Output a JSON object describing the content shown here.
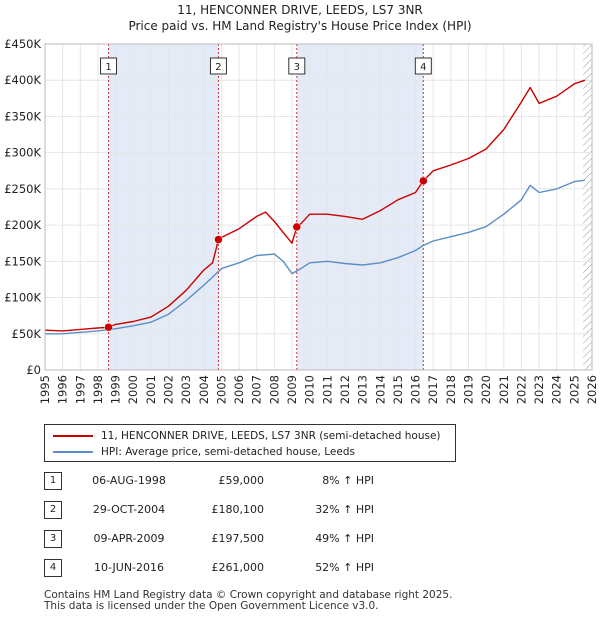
{
  "chart_data": {
    "type": "line",
    "title": "11, HENCONNER DRIVE, LEEDS, LS7 3NR",
    "subtitle": "Price paid vs. HM Land Registry's House Price Index (HPI)",
    "xlabel": "",
    "ylabel": "",
    "xlim": [
      1995,
      2026
    ],
    "ylim": [
      0,
      450000
    ],
    "x_ticks": [
      "1995",
      "1996",
      "1997",
      "1998",
      "1999",
      "2000",
      "2001",
      "2002",
      "2003",
      "2004",
      "2005",
      "2006",
      "2007",
      "2008",
      "2009",
      "2010",
      "2011",
      "2012",
      "2013",
      "2014",
      "2015",
      "2016",
      "2017",
      "2018",
      "2019",
      "2020",
      "2021",
      "2022",
      "2023",
      "2024",
      "2025",
      "2026"
    ],
    "y_ticks": [
      {
        "value": 0,
        "label": "£0"
      },
      {
        "value": 50000,
        "label": "£50K"
      },
      {
        "value": 100000,
        "label": "£100K"
      },
      {
        "value": 150000,
        "label": "£150K"
      },
      {
        "value": 200000,
        "label": "£200K"
      },
      {
        "value": 250000,
        "label": "£250K"
      },
      {
        "value": 300000,
        "label": "£300K"
      },
      {
        "value": 350000,
        "label": "£350K"
      },
      {
        "value": 400000,
        "label": "£400K"
      },
      {
        "value": 450000,
        "label": "£450K"
      }
    ],
    "grid": true,
    "series": [
      {
        "name": "11, HENCONNER DRIVE, LEEDS, LS7 3NR (semi-detached house)",
        "color": "#cc0000",
        "x": [
          1995,
          1996,
          1997,
          1998,
          1998.6,
          1999,
          2000,
          2001,
          2002,
          2003,
          2004,
          2004.5,
          2004.83,
          2005,
          2006,
          2007,
          2007.5,
          2008,
          2008.5,
          2009,
          2009.27,
          2009.5,
          2010,
          2011,
          2012,
          2013,
          2014,
          2015,
          2016,
          2016.44,
          2017,
          2018,
          2019,
          2020,
          2021,
          2022,
          2022.5,
          2023,
          2024,
          2025,
          2025.6
        ],
        "values": [
          55000,
          54000,
          56000,
          58000,
          59000,
          63000,
          67000,
          73000,
          88000,
          110000,
          138000,
          148000,
          180100,
          183000,
          195000,
          212000,
          218000,
          205000,
          190000,
          175000,
          197500,
          202000,
          215000,
          215000,
          212000,
          208000,
          220000,
          235000,
          245000,
          261000,
          275000,
          283000,
          292000,
          305000,
          332000,
          370000,
          390000,
          368000,
          378000,
          395000,
          400000
        ]
      },
      {
        "name": "HPI: Average price, semi-detached house, Leeds",
        "color": "#5b8dc8",
        "x": [
          1995,
          1996,
          1997,
          1998,
          1999,
          2000,
          2001,
          2002,
          2003,
          2004,
          2004.83,
          2005,
          2006,
          2007,
          2008,
          2008.5,
          2009,
          2009.5,
          2010,
          2011,
          2012,
          2013,
          2014,
          2015,
          2016,
          2016.44,
          2017,
          2018,
          2019,
          2020,
          2021,
          2022,
          2022.5,
          2023,
          2024,
          2025,
          2025.6
        ],
        "values": [
          50000,
          50000,
          52000,
          54000,
          57000,
          61000,
          66000,
          77000,
          96000,
          117000,
          136000,
          140000,
          148000,
          158000,
          160000,
          150000,
          133000,
          140000,
          148000,
          150000,
          147000,
          145000,
          148000,
          155000,
          165000,
          172000,
          178000,
          184000,
          190000,
          198000,
          215000,
          235000,
          255000,
          245000,
          250000,
          260000,
          262000
        ]
      }
    ],
    "sale_markers": [
      {
        "label": "1",
        "x": 1998.6,
        "value": 59000
      },
      {
        "label": "2",
        "x": 2004.83,
        "value": 180100
      },
      {
        "label": "3",
        "x": 2009.27,
        "value": 197500
      },
      {
        "label": "4",
        "x": 2016.44,
        "value": 261000
      }
    ]
  },
  "legend": {
    "property": "11, HENCONNER DRIVE, LEEDS, LS7 3NR (semi-detached house)",
    "hpi": "HPI: Average price, semi-detached house, Leeds"
  },
  "sales": [
    {
      "num": "1",
      "date": "06-AUG-1998",
      "price": "£59,000",
      "hpi": "8% ↑ HPI"
    },
    {
      "num": "2",
      "date": "29-OCT-2004",
      "price": "£180,100",
      "hpi": "32% ↑ HPI"
    },
    {
      "num": "3",
      "date": "09-APR-2009",
      "price": "£197,500",
      "hpi": "49% ↑ HPI"
    },
    {
      "num": "4",
      "date": "10-JUN-2016",
      "price": "£261,000",
      "hpi": "52% ↑ HPI"
    }
  ],
  "footer": {
    "line1": "Contains HM Land Registry data © Crown copyright and database right 2025.",
    "line2": "This data is licensed under the Open Government Licence v3.0."
  },
  "colors": {
    "property": "#cc0000",
    "hpi": "#5b8dc8",
    "shade": "#dde6f5",
    "plot_bg": "#ffffff"
  }
}
